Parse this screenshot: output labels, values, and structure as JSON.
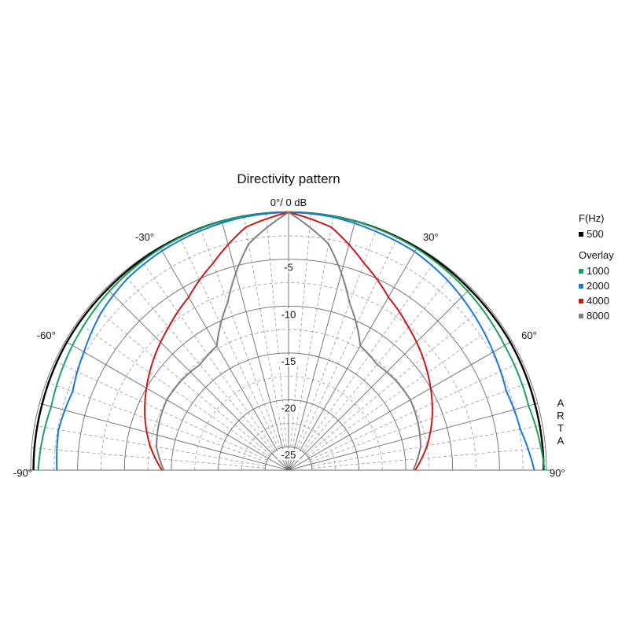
{
  "chart_data": {
    "type": "polar-line",
    "title": "Directivity pattern",
    "top_label": "0°/ 0 dB",
    "angle_labels": [
      {
        "angle": -90,
        "text": "-90°"
      },
      {
        "angle": -60,
        "text": "-60°"
      },
      {
        "angle": -30,
        "text": "-30°"
      },
      {
        "angle": 30,
        "text": "30°"
      },
      {
        "angle": 60,
        "text": "60°"
      },
      {
        "angle": 90,
        "text": "90°"
      }
    ],
    "db_labels": [
      "-5",
      "-10",
      "-15",
      "-20",
      "-25"
    ],
    "db_label_values": [
      -5,
      -10,
      -15,
      -20,
      -25
    ],
    "db_range": [
      -27.5,
      0
    ],
    "grid": true,
    "legend_heading": "F(Hz)",
    "legend_overlay_heading": "Overlay",
    "watermark": "ARTA",
    "series": [
      {
        "name": "500",
        "color": "#000000",
        "angles": [
          -90,
          -75,
          -60,
          -45,
          -30,
          -15,
          0,
          15,
          30,
          45,
          60,
          75,
          90
        ],
        "db": [
          -0.3,
          -0.3,
          -0.2,
          -0.2,
          -0.1,
          0,
          0,
          0,
          -0.1,
          -0.2,
          -0.2,
          -0.3,
          -0.3
        ]
      },
      {
        "name": "1000",
        "color": "#1aa35a",
        "angles": [
          -90,
          -75,
          -60,
          -45,
          -30,
          -15,
          0,
          15,
          30,
          45,
          60,
          75,
          90
        ],
        "db": [
          -0.8,
          -1.3,
          -0.9,
          -0.5,
          -0.2,
          0,
          0,
          0,
          -0.2,
          -0.5,
          -0.9,
          -1.0,
          -0.2
        ]
      },
      {
        "name": "2000",
        "color": "#1f77d4",
        "angles": [
          -90,
          -80,
          -70,
          -60,
          -50,
          -40,
          -30,
          -20,
          -10,
          0,
          10,
          20,
          30,
          40,
          50,
          60,
          70,
          80,
          90
        ],
        "db": [
          -2.8,
          -2.6,
          -3.0,
          -2.3,
          -1.4,
          -0.8,
          -0.5,
          -0.3,
          -0.1,
          0,
          -0.1,
          -0.4,
          -0.6,
          -1.1,
          -1.7,
          -2.3,
          -2.8,
          -2.4,
          -1.3
        ]
      },
      {
        "name": "4000",
        "color": "#c41a1a",
        "angles": [
          -90,
          -80,
          -70,
          -60,
          -50,
          -40,
          -30,
          -20,
          -10,
          0,
          10,
          20,
          30,
          40,
          50,
          60,
          70,
          80,
          90
        ],
        "db": [
          -14.0,
          -12.5,
          -11.2,
          -10.0,
          -8.8,
          -7.6,
          -6.2,
          -4.0,
          -1.2,
          0,
          -1.2,
          -4.0,
          -6.2,
          -7.6,
          -8.8,
          -10.0,
          -11.2,
          -12.5,
          -14.0
        ]
      },
      {
        "name": "8000",
        "color": "#808080",
        "angles": [
          -90,
          -80,
          -70,
          -60,
          -50,
          -40,
          -30,
          -20,
          -10,
          0,
          10,
          20,
          30,
          40,
          50,
          60,
          70,
          80,
          90
        ],
        "db": [
          -14.2,
          -13.2,
          -12.8,
          -12.5,
          -12.6,
          -12.8,
          -12.2,
          -8.5,
          -3.0,
          0,
          -3.0,
          -8.5,
          -12.2,
          -12.8,
          -12.6,
          -12.5,
          -12.8,
          -13.2,
          -14.2
        ]
      }
    ]
  }
}
